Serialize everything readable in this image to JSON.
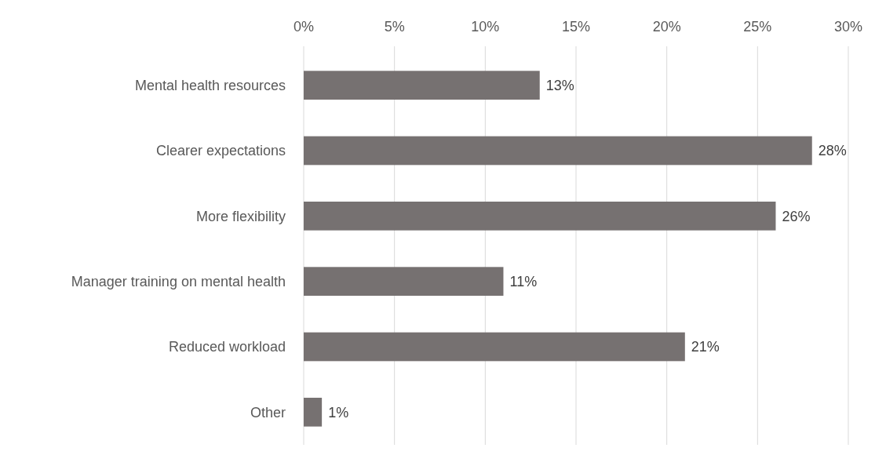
{
  "chart_data": {
    "type": "bar",
    "orientation": "horizontal",
    "categories": [
      "Mental health resources",
      "Clearer expectations",
      "More flexibility",
      "Manager training on mental health",
      "Reduced workload",
      "Other"
    ],
    "values": [
      13,
      28,
      26,
      11,
      21,
      1
    ],
    "color": "#767171",
    "xlim": [
      0,
      30
    ],
    "xticks": [
      {
        "value": 0,
        "label": "0%"
      },
      {
        "value": 5,
        "label": "5%"
      },
      {
        "value": 10,
        "label": "10%"
      },
      {
        "value": 15,
        "label": "15%"
      },
      {
        "value": 20,
        "label": "20%"
      },
      {
        "value": 25,
        "label": "25%"
      },
      {
        "value": 30,
        "label": "30%"
      }
    ],
    "value_labels": [
      "13%",
      "28%",
      "26%",
      "11%",
      "21%",
      "1%"
    ],
    "grid": "x"
  }
}
